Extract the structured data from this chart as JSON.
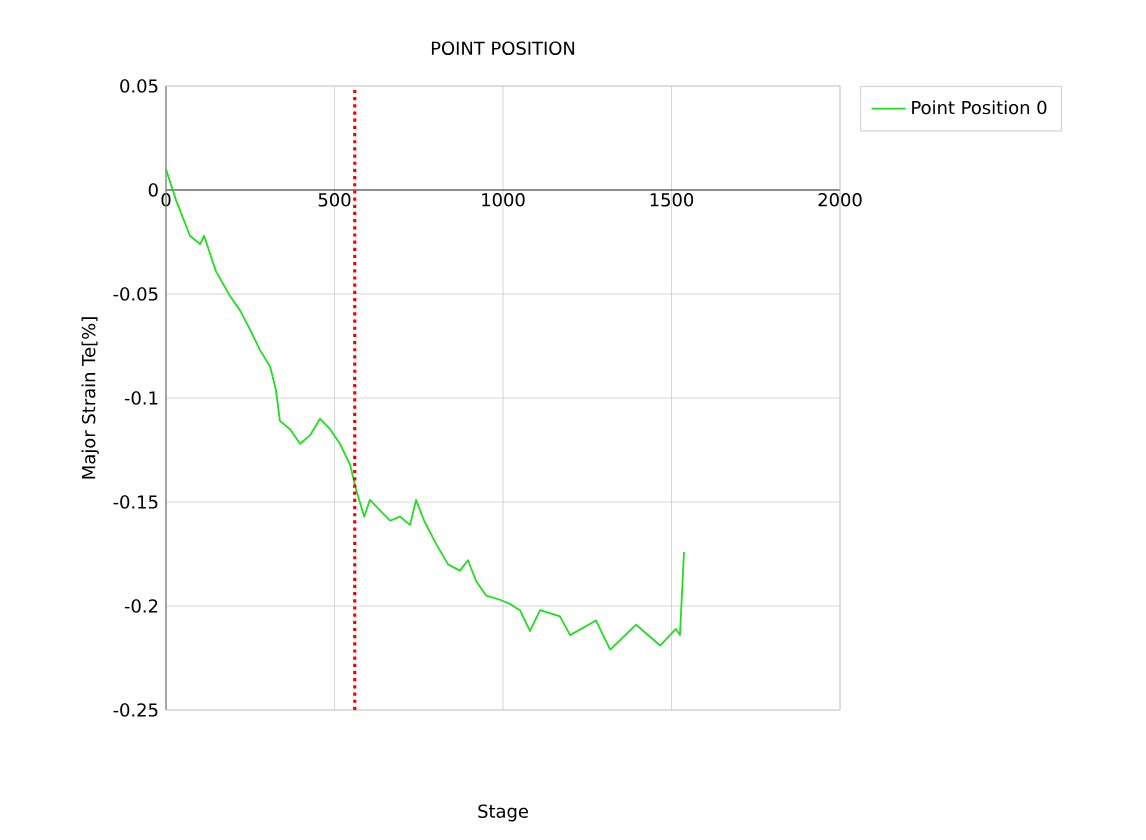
{
  "chart_data": {
    "type": "line",
    "title": "POINT POSITION",
    "xlabel": "Stage",
    "ylabel": "Major Strain Te[%]",
    "xlim": [
      0,
      2000
    ],
    "xticks": [
      0,
      500,
      1000,
      1500,
      2000
    ],
    "ylim": [
      -0.25,
      0.05
    ],
    "yticks": [
      -0.25,
      -0.2,
      -0.15,
      -0.1,
      -0.05,
      0,
      0.05
    ],
    "grid": true,
    "legend": "top right",
    "marker": "none",
    "line_style": "solid",
    "ref_lines": [
      {
        "axis": "x",
        "value": 560,
        "color": "#ff0000",
        "line_style": "dotted"
      }
    ],
    "series": [
      {
        "name": "Point Position 0",
        "color": "#22dd22",
        "x": [
          0,
          30,
          71,
          101,
          113,
          148,
          190,
          220,
          249,
          279,
          309,
          326,
          338,
          368,
          398,
          427,
          457,
          487,
          516,
          546,
          564,
          588,
          605,
          635,
          665,
          694,
          724,
          742,
          766,
          801,
          837,
          872,
          896,
          920,
          950,
          991,
          1021,
          1050,
          1080,
          1110,
          1169,
          1199,
          1276,
          1318,
          1395,
          1466,
          1513,
          1525,
          1537
        ],
        "values": [
          0.01,
          -0.005,
          -0.022,
          -0.026,
          -0.022,
          -0.039,
          -0.051,
          -0.058,
          -0.067,
          -0.077,
          -0.085,
          -0.096,
          -0.111,
          -0.115,
          -0.122,
          -0.118,
          -0.11,
          -0.115,
          -0.122,
          -0.132,
          -0.144,
          -0.157,
          -0.149,
          -0.154,
          -0.159,
          -0.157,
          -0.161,
          -0.149,
          -0.159,
          -0.17,
          -0.18,
          -0.183,
          -0.178,
          -0.188,
          -0.195,
          -0.197,
          -0.199,
          -0.202,
          -0.212,
          -0.202,
          -0.205,
          -0.214,
          -0.207,
          -0.221,
          -0.209,
          -0.219,
          -0.211,
          -0.214,
          -0.174
        ]
      }
    ]
  }
}
